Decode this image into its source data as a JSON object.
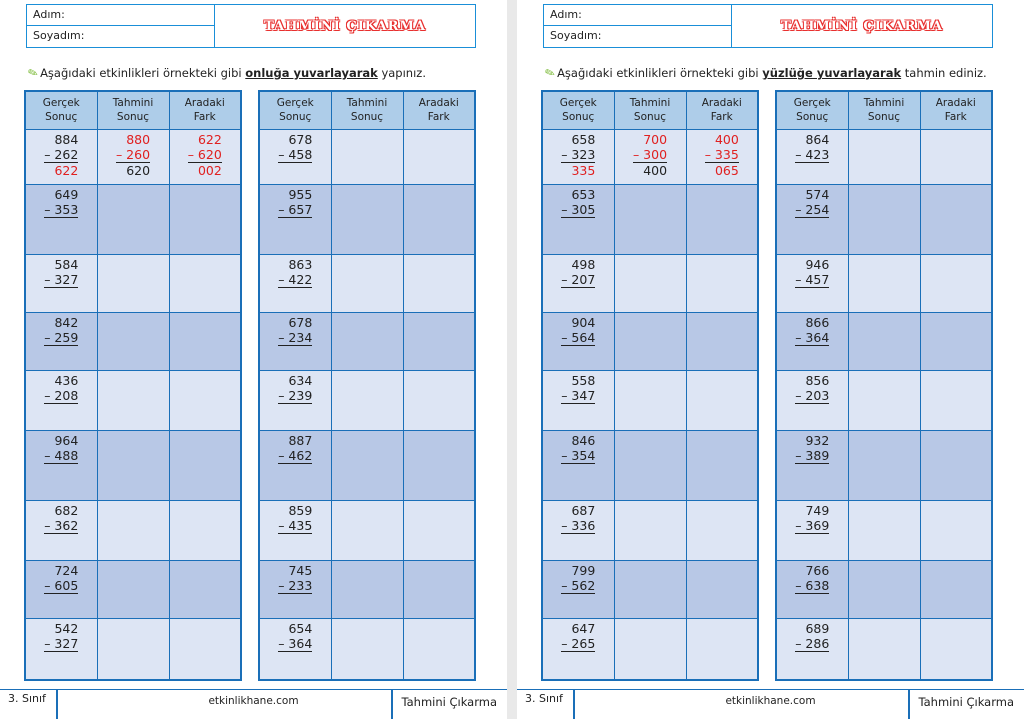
{
  "pages": [
    {
      "name_label": "Adım:",
      "surname_label": "Soyadım:",
      "title": "TAHMİNİ ÇIKARMA",
      "instruction": {
        "pre": "Aşağıdaki etkinlikleri örnekteki gibi ",
        "emph": "onluğa yuvarlayarak",
        "post": " yapınız."
      },
      "headers": [
        [
          "Gerçek",
          "Sonuç"
        ],
        [
          "Tahmini",
          "Sonuç"
        ],
        [
          "Aradaki",
          "Fark"
        ]
      ],
      "example": {
        "actual": [
          "884",
          "– 262",
          "622"
        ],
        "estimate": [
          "880",
          "– 260",
          "620"
        ],
        "diff": [
          "622",
          "– 620",
          "002"
        ]
      },
      "col1": [
        [
          "649",
          "– 353"
        ],
        [
          "584",
          "– 327"
        ],
        [
          "842",
          "– 259"
        ],
        [
          "436",
          "– 208"
        ],
        [
          "964",
          "– 488"
        ],
        [
          "682",
          "– 362"
        ],
        [
          "724",
          "– 605"
        ],
        [
          "542",
          "– 327"
        ]
      ],
      "col2": [
        [
          "678",
          "– 458"
        ],
        [
          "955",
          "– 657"
        ],
        [
          "863",
          "– 422"
        ],
        [
          "678",
          "– 234"
        ],
        [
          "634",
          "– 239"
        ],
        [
          "887",
          "– 462"
        ],
        [
          "859",
          "– 435"
        ],
        [
          "745",
          "– 233"
        ],
        [
          "654",
          "– 364"
        ]
      ],
      "footer": {
        "grade": "3. Sınıf",
        "site": "etkinlikhane.com",
        "topic": "Tahmini Çıkarma"
      }
    },
    {
      "name_label": "Adım:",
      "surname_label": "Soyadım:",
      "title": "TAHMİNİ ÇIKARMA",
      "instruction": {
        "pre": "Aşağıdaki etkinlikleri örnekteki gibi ",
        "emph": "yüzlüğe yuvarlayarak",
        "post": " tahmin ediniz."
      },
      "headers": [
        [
          "Gerçek",
          "Sonuç"
        ],
        [
          "Tahmini",
          "Sonuç"
        ],
        [
          "Aradaki",
          "Fark"
        ]
      ],
      "example": {
        "actual": [
          "658",
          "– 323",
          "335"
        ],
        "estimate": [
          "700",
          "– 300",
          "400"
        ],
        "diff": [
          "400",
          "– 335",
          "065"
        ]
      },
      "col1": [
        [
          "653",
          "– 305"
        ],
        [
          "498",
          "– 207"
        ],
        [
          "904",
          "– 564"
        ],
        [
          "558",
          "– 347"
        ],
        [
          "846",
          "– 354"
        ],
        [
          "687",
          "– 336"
        ],
        [
          "799",
          "– 562"
        ],
        [
          "647",
          "– 265"
        ]
      ],
      "col2": [
        [
          "864",
          "– 423"
        ],
        [
          "574",
          "– 254"
        ],
        [
          "946",
          "– 457"
        ],
        [
          "866",
          "– 364"
        ],
        [
          "856",
          "– 203"
        ],
        [
          "932",
          "– 389"
        ],
        [
          "749",
          "– 369"
        ],
        [
          "766",
          "– 638"
        ],
        [
          "689",
          "– 286"
        ]
      ],
      "footer": {
        "grade": "3. Sınıf",
        "site": "etkinlikhane.com",
        "topic": "Tahmini Çıkarma"
      }
    }
  ]
}
